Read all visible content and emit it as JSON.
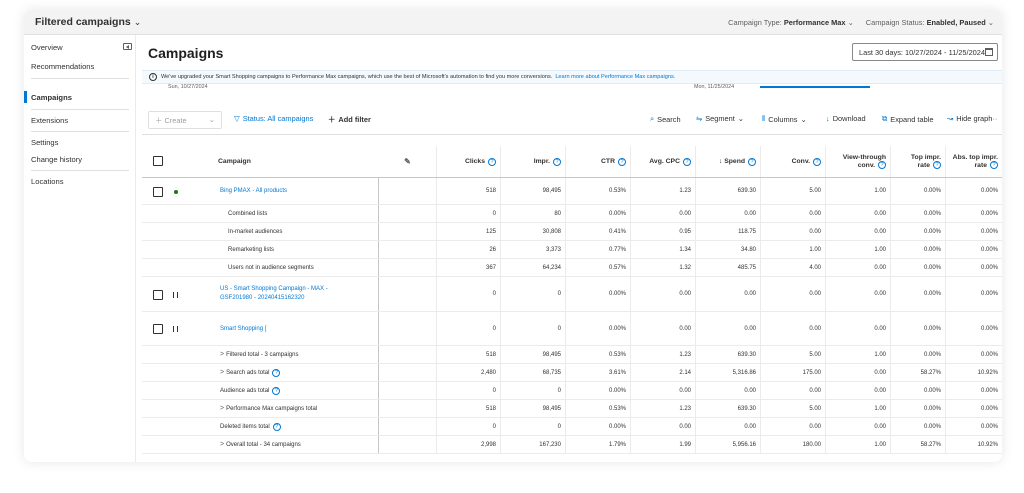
{
  "topbar": {
    "title": "Filtered campaigns",
    "campaign_type_label": "Campaign Type:",
    "campaign_type_value": "Performance Max",
    "campaign_status_label": "Campaign Status:",
    "campaign_status_value": "Enabled, Paused"
  },
  "sidebar": {
    "items": [
      "Overview",
      "Recommendations",
      "Campaigns",
      "Extensions",
      "Settings",
      "Change history",
      "Locations"
    ],
    "active": "Campaigns"
  },
  "page": {
    "title": "Campaigns",
    "date_range": "Last 30 days: 10/27/2024 - 11/25/2024"
  },
  "banner": {
    "text": "We've upgraded your Smart Shopping campaigns to Performance Max campaigns, which use the best of Microsoft's automation to find you more conversions.",
    "link": "Learn more about Performance Max campaigns."
  },
  "graph": {
    "start_date": "Sun, 10/27/2024",
    "end_date": "Mon, 11/25/2024"
  },
  "toolbar": {
    "create": "Create",
    "status_filter": "Status: All campaigns",
    "add_filter": "Add filter",
    "search": "Search",
    "segment": "Segment",
    "columns": "Columns",
    "download": "Download",
    "expand_table": "Expand table",
    "hide_graph": "Hide graph",
    "more": "···"
  },
  "table": {
    "headers": {
      "campaign": "Campaign",
      "clicks": "Clicks",
      "impr": "Impr.",
      "ctr": "CTR",
      "avg_cpc": "Avg. CPC",
      "spend": "↓ Spend",
      "conv": "Conv.",
      "view_through_1": "View-through",
      "view_through_2": "conv.",
      "top_impr_1": "Top impr.",
      "top_impr_2": "rate",
      "abs_top_1": "Abs. top impr.",
      "abs_top_2": "rate"
    },
    "rows": [
      {
        "name": "Bing PMAX - All products",
        "clicks": "518",
        "impr": "98,495",
        "ctr": "0.53%",
        "cpc": "1.23",
        "spend": "639.30",
        "conv": "5.00",
        "vtc": "1.00",
        "top": "0.00%",
        "abs": "0.00%"
      },
      {
        "name": "Combined lists",
        "clicks": "0",
        "impr": "80",
        "ctr": "0.00%",
        "cpc": "0.00",
        "spend": "0.00",
        "conv": "0.00",
        "vtc": "0.00",
        "top": "0.00%",
        "abs": "0.00%"
      },
      {
        "name": "In-market audiences",
        "clicks": "125",
        "impr": "30,808",
        "ctr": "0.41%",
        "cpc": "0.95",
        "spend": "118.75",
        "conv": "0.00",
        "vtc": "0.00",
        "top": "0.00%",
        "abs": "0.00%"
      },
      {
        "name": "Remarketing lists",
        "clicks": "26",
        "impr": "3,373",
        "ctr": "0.77%",
        "cpc": "1.34",
        "spend": "34.80",
        "conv": "1.00",
        "vtc": "1.00",
        "top": "0.00%",
        "abs": "0.00%"
      },
      {
        "name": "Users not in audience segments",
        "clicks": "367",
        "impr": "64,234",
        "ctr": "0.57%",
        "cpc": "1.32",
        "spend": "485.75",
        "conv": "4.00",
        "vtc": "0.00",
        "top": "0.00%",
        "abs": "0.00%"
      },
      {
        "name1": "US - Smart Shopping Campaign - MAX -",
        "name2": "GSF201980 - 20240415162320",
        "clicks": "0",
        "impr": "0",
        "ctr": "0.00%",
        "cpc": "0.00",
        "spend": "0.00",
        "conv": "0.00",
        "vtc": "0.00",
        "top": "0.00%",
        "abs": "0.00%"
      },
      {
        "name": "Smart Shopping [",
        "clicks": "0",
        "impr": "0",
        "ctr": "0.00%",
        "cpc": "0.00",
        "spend": "0.00",
        "conv": "0.00",
        "vtc": "0.00",
        "top": "0.00%",
        "abs": "0.00%"
      },
      {
        "name": "Filtered total - 3 campaigns",
        "clicks": "518",
        "impr": "98,495",
        "ctr": "0.53%",
        "cpc": "1.23",
        "spend": "639.30",
        "conv": "5.00",
        "vtc": "1.00",
        "top": "0.00%",
        "abs": "0.00%"
      },
      {
        "name": "Search ads total",
        "clicks": "2,480",
        "impr": "68,735",
        "ctr": "3.61%",
        "cpc": "2.14",
        "spend": "5,316.86",
        "conv": "175.00",
        "vtc": "0.00",
        "top": "58.27%",
        "abs": "10.92%"
      },
      {
        "name": "Audience ads total",
        "clicks": "0",
        "impr": "0",
        "ctr": "0.00%",
        "cpc": "0.00",
        "spend": "0.00",
        "conv": "0.00",
        "vtc": "0.00",
        "top": "0.00%",
        "abs": "0.00%"
      },
      {
        "name": "Performance Max campaigns total",
        "clicks": "518",
        "impr": "98,495",
        "ctr": "0.53%",
        "cpc": "1.23",
        "spend": "639.30",
        "conv": "5.00",
        "vtc": "1.00",
        "top": "0.00%",
        "abs": "0.00%"
      },
      {
        "name": "Deleted items total",
        "clicks": "0",
        "impr": "0",
        "ctr": "0.00%",
        "cpc": "0.00",
        "spend": "0.00",
        "conv": "0.00",
        "vtc": "0.00",
        "top": "0.00%",
        "abs": "0.00%"
      },
      {
        "name": "Overall total - 34 campaigns",
        "clicks": "2,998",
        "impr": "167,230",
        "ctr": "1.79%",
        "cpc": "1.99",
        "spend": "5,956.16",
        "conv": "180.00",
        "vtc": "1.00",
        "top": "58.27%",
        "abs": "10.92%"
      }
    ]
  }
}
